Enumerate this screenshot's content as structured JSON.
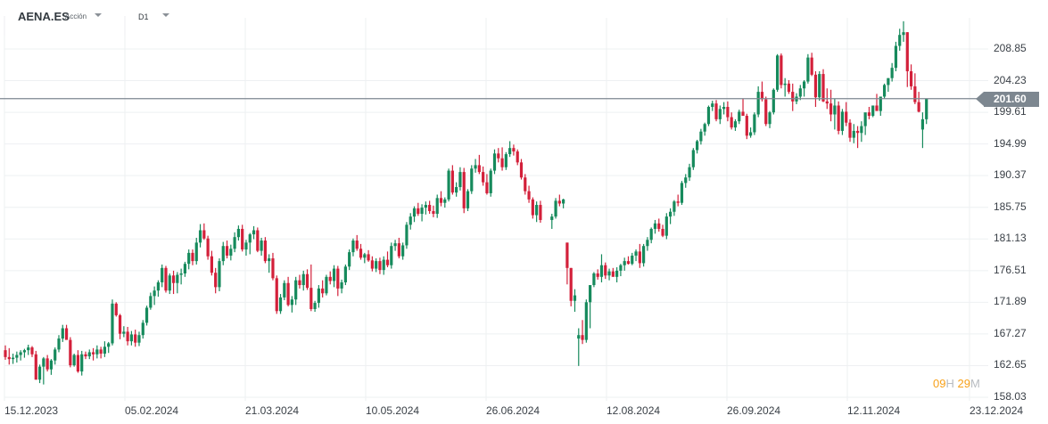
{
  "header": {
    "symbol": "AENA.ES",
    "asset_type": "Acción",
    "timeframe": "D1"
  },
  "price_axis": {
    "ticks": [
      "208.85",
      "204.23",
      "199.61",
      "194.99",
      "190.37",
      "185.75",
      "181.13",
      "176.51",
      "171.89",
      "167.27",
      "162.65",
      "158.03"
    ],
    "current_price": "201.60"
  },
  "date_axis": {
    "ticks": [
      "15.12.2023",
      "05.02.2024",
      "21.03.2024",
      "10.05.2024",
      "26.06.2024",
      "12.08.2024",
      "26.09.2024",
      "12.11.2024",
      "23.12.2024"
    ]
  },
  "countdown": {
    "hours": "09",
    "h_unit": "H",
    "minutes": "29",
    "m_unit": "M"
  },
  "colors": {
    "up": "#168a5c",
    "down": "#d3203a",
    "price_line": "#7d8790",
    "grid": "#eef0f2",
    "countdown": "#f7a11a"
  },
  "chart_data": {
    "type": "candlestick",
    "title": "AENA.ES Acción D1",
    "xlabel": "",
    "ylabel": "",
    "ylim": [
      158.03,
      213.5
    ],
    "x_ticks": [
      "15.12.2023",
      "05.02.2024",
      "21.03.2024",
      "10.05.2024",
      "26.06.2024",
      "12.08.2024",
      "26.09.2024",
      "12.11.2024",
      "23.12.2024"
    ],
    "y_ticks": [
      208.85,
      204.23,
      199.61,
      194.99,
      190.37,
      185.75,
      181.13,
      176.51,
      171.89,
      167.27,
      162.65,
      158.03
    ],
    "current_price": 201.6,
    "grid": true,
    "candles_ohlc": [
      [
        164.9,
        165.6,
        163.5,
        163.9
      ],
      [
        163.9,
        165.2,
        162.8,
        163.6
      ],
      [
        163.6,
        164.4,
        162.9,
        163.8
      ],
      [
        163.8,
        164.7,
        163.1,
        164.2
      ],
      [
        164.2,
        164.9,
        163.4,
        164.6
      ],
      [
        164.6,
        165.1,
        163.8,
        164.9
      ],
      [
        164.9,
        165.7,
        164.2,
        165.3
      ],
      [
        165.3,
        165.5,
        163.9,
        164.3
      ],
      [
        164.3,
        164.8,
        160.6,
        160.6
      ],
      [
        160.6,
        162.8,
        160.1,
        162.5
      ],
      [
        162.5,
        163.9,
        159.9,
        163.7
      ],
      [
        163.7,
        164.2,
        161.8,
        162.1
      ],
      [
        162.1,
        163.6,
        161.3,
        163.4
      ],
      [
        163.4,
        165.3,
        162.8,
        165.0
      ],
      [
        165.0,
        167.1,
        164.6,
        166.6
      ],
      [
        166.6,
        168.6,
        166.1,
        168.1
      ],
      [
        168.1,
        168.6,
        166.9,
        166.4
      ],
      [
        166.4,
        166.8,
        162.4,
        162.7
      ],
      [
        162.7,
        164.4,
        162.5,
        164.2
      ],
      [
        164.2,
        164.9,
        161.6,
        161.8
      ],
      [
        161.8,
        164.8,
        161.2,
        164.3
      ],
      [
        164.3,
        164.7,
        163.6,
        164.0
      ],
      [
        164.0,
        165.0,
        163.6,
        164.6
      ],
      [
        164.6,
        165.2,
        163.4,
        164.3
      ],
      [
        164.3,
        165.6,
        163.7,
        165.0
      ],
      [
        165.0,
        165.4,
        163.7,
        164.4
      ],
      [
        164.4,
        166.2,
        163.9,
        165.4
      ],
      [
        165.4,
        166.1,
        164.5,
        165.9
      ],
      [
        165.9,
        172.3,
        165.6,
        171.7
      ],
      [
        171.7,
        171.9,
        169.8,
        170.0
      ],
      [
        170.0,
        170.2,
        166.5,
        167.3
      ],
      [
        167.3,
        168.4,
        166.8,
        167.6
      ],
      [
        167.6,
        168.3,
        165.6,
        166.2
      ],
      [
        166.2,
        167.7,
        165.6,
        167.2
      ],
      [
        167.2,
        167.9,
        165.4,
        166.0
      ],
      [
        166.0,
        167.6,
        165.5,
        167.1
      ],
      [
        167.1,
        169.3,
        166.6,
        168.9
      ],
      [
        168.9,
        171.4,
        168.5,
        171.1
      ],
      [
        171.1,
        173.3,
        170.8,
        172.8
      ],
      [
        172.8,
        174.2,
        171.5,
        173.6
      ],
      [
        173.6,
        175.1,
        172.7,
        174.8
      ],
      [
        174.8,
        177.4,
        174.1,
        176.9
      ],
      [
        176.9,
        177.2,
        173.3,
        173.6
      ],
      [
        173.6,
        176.1,
        173.1,
        175.8
      ],
      [
        175.8,
        176.5,
        173.1,
        174.7
      ],
      [
        174.7,
        176.3,
        173.2,
        175.9
      ],
      [
        175.9,
        176.8,
        174.5,
        176.1
      ],
      [
        176.1,
        177.8,
        175.6,
        177.5
      ],
      [
        177.5,
        179.6,
        176.7,
        179.1
      ],
      [
        179.1,
        179.6,
        177.3,
        177.9
      ],
      [
        177.9,
        181.3,
        177.4,
        180.6
      ],
      [
        180.6,
        183.3,
        179.9,
        182.4
      ],
      [
        182.4,
        183.4,
        181.0,
        181.2
      ],
      [
        181.2,
        181.6,
        178.1,
        178.6
      ],
      [
        178.6,
        179.4,
        175.8,
        176.2
      ],
      [
        176.2,
        176.9,
        173.2,
        174.1
      ],
      [
        174.1,
        178.3,
        173.5,
        177.9
      ],
      [
        177.9,
        180.7,
        177.3,
        180.1
      ],
      [
        180.1,
        180.9,
        178.3,
        178.7
      ],
      [
        178.7,
        180.3,
        178.0,
        179.7
      ],
      [
        179.7,
        182.1,
        179.2,
        181.4
      ],
      [
        181.4,
        183.1,
        180.9,
        182.6
      ],
      [
        182.6,
        183.2,
        179.3,
        179.6
      ],
      [
        179.6,
        181.0,
        178.7,
        180.6
      ],
      [
        180.6,
        182.0,
        178.9,
        181.8
      ],
      [
        181.8,
        183.0,
        181.1,
        182.4
      ],
      [
        182.4,
        182.8,
        179.2,
        179.4
      ],
      [
        179.4,
        181.3,
        178.7,
        180.9
      ],
      [
        180.9,
        181.4,
        177.6,
        177.9
      ],
      [
        177.9,
        178.9,
        176.2,
        178.3
      ],
      [
        178.3,
        179.1,
        175.1,
        175.4
      ],
      [
        175.4,
        175.8,
        170.2,
        170.6
      ],
      [
        170.6,
        173.1,
        170.2,
        172.6
      ],
      [
        172.6,
        175.1,
        172.2,
        174.7
      ],
      [
        174.7,
        175.6,
        171.3,
        171.5
      ],
      [
        171.5,
        172.8,
        170.4,
        172.3
      ],
      [
        172.3,
        175.6,
        171.5,
        175.1
      ],
      [
        175.1,
        175.9,
        173.9,
        174.4
      ],
      [
        174.4,
        176.5,
        173.6,
        176.0
      ],
      [
        176.0,
        176.7,
        173.7,
        174.0
      ],
      [
        174.0,
        177.4,
        170.6,
        170.9
      ],
      [
        170.9,
        172.1,
        170.5,
        171.8
      ],
      [
        171.8,
        174.4,
        171.1,
        173.9
      ],
      [
        173.9,
        175.1,
        172.6,
        173.2
      ],
      [
        173.2,
        175.9,
        172.9,
        175.6
      ],
      [
        175.6,
        176.4,
        174.5,
        175.0
      ],
      [
        175.0,
        177.3,
        174.1,
        176.8
      ],
      [
        176.8,
        177.2,
        172.8,
        173.9
      ],
      [
        173.9,
        175.2,
        173.2,
        174.8
      ],
      [
        174.8,
        177.4,
        174.4,
        177.1
      ],
      [
        177.1,
        179.6,
        176.6,
        179.2
      ],
      [
        179.2,
        181.2,
        178.6,
        180.9
      ],
      [
        180.9,
        181.7,
        179.4,
        179.7
      ],
      [
        179.7,
        180.4,
        178.1,
        178.4
      ],
      [
        178.4,
        179.1,
        177.6,
        178.9
      ],
      [
        178.9,
        179.5,
        177.8,
        178.0
      ],
      [
        178.0,
        178.6,
        176.4,
        176.8
      ],
      [
        176.8,
        178.3,
        176.3,
        177.9
      ],
      [
        177.9,
        178.4,
        176.0,
        176.6
      ],
      [
        176.6,
        178.6,
        175.9,
        178.1
      ],
      [
        178.1,
        179.3,
        177.0,
        177.3
      ],
      [
        177.3,
        180.6,
        176.8,
        180.1
      ],
      [
        180.1,
        181.0,
        179.4,
        180.5
      ],
      [
        180.5,
        181.3,
        178.3,
        178.6
      ],
      [
        178.6,
        180.6,
        178.1,
        180.2
      ],
      [
        180.2,
        183.6,
        179.7,
        183.2
      ],
      [
        183.2,
        184.9,
        182.5,
        184.4
      ],
      [
        184.4,
        185.9,
        183.6,
        185.6
      ],
      [
        185.6,
        186.4,
        184.5,
        184.8
      ],
      [
        184.8,
        186.2,
        183.7,
        185.7
      ],
      [
        185.7,
        186.6,
        184.7,
        186.1
      ],
      [
        186.1,
        186.7,
        184.8,
        185.2
      ],
      [
        185.2,
        186.0,
        184.3,
        184.8
      ],
      [
        184.8,
        187.6,
        184.2,
        187.1
      ],
      [
        187.1,
        188.1,
        185.9,
        186.4
      ],
      [
        186.4,
        187.2,
        185.7,
        186.9
      ],
      [
        186.9,
        191.4,
        186.6,
        191.1
      ],
      [
        191.1,
        191.9,
        187.6,
        187.9
      ],
      [
        187.9,
        189.4,
        187.3,
        188.7
      ],
      [
        188.7,
        191.6,
        188.2,
        190.9
      ],
      [
        190.9,
        191.5,
        184.9,
        185.6
      ],
      [
        185.6,
        188.4,
        185.2,
        188.1
      ],
      [
        188.1,
        191.9,
        187.7,
        191.4
      ],
      [
        191.4,
        192.8,
        190.8,
        191.9
      ],
      [
        191.9,
        193.4,
        190.6,
        190.9
      ],
      [
        190.9,
        191.7,
        188.9,
        189.4
      ],
      [
        189.4,
        190.6,
        187.6,
        187.8
      ],
      [
        187.8,
        191.4,
        187.3,
        191.1
      ],
      [
        191.1,
        194.2,
        190.6,
        193.6
      ],
      [
        193.6,
        194.4,
        192.3,
        192.9
      ],
      [
        192.9,
        194.5,
        191.1,
        191.6
      ],
      [
        191.6,
        193.8,
        191.2,
        193.5
      ],
      [
        193.5,
        195.4,
        193.1,
        194.4
      ],
      [
        194.4,
        194.9,
        193.3,
        193.9
      ],
      [
        193.9,
        194.2,
        191.9,
        192.3
      ],
      [
        192.3,
        192.8,
        189.8,
        190.1
      ],
      [
        190.1,
        190.6,
        187.6,
        188.1
      ],
      [
        188.1,
        188.9,
        186.4,
        186.9
      ],
      [
        186.9,
        187.2,
        184.1,
        184.6
      ],
      [
        184.6,
        186.6,
        183.6,
        186.1
      ],
      [
        186.1,
        186.7,
        183.5,
        183.9
      ],
      [
        183.9,
        184.8,
        182.6,
        184.4
      ],
      [
        184.4,
        187.1,
        184.1,
        186.7
      ],
      [
        186.7,
        187.6,
        185.9,
        186.3
      ],
      [
        186.3,
        187.0,
        185.6,
        186.9
      ],
      [
        180.6,
        180.6,
        174.5,
        176.9
      ],
      [
        176.9,
        176.9,
        171.3,
        172.1
      ],
      [
        172.1,
        173.8,
        170.5,
        172.9
      ],
      [
        166.6,
        168.1,
        162.6,
        167.1
      ],
      [
        167.1,
        169.3,
        165.8,
        166.4
      ],
      [
        166.4,
        172.3,
        166.0,
        171.9
      ],
      [
        171.9,
        173.6,
        168.1,
        174.4
      ],
      [
        174.4,
        176.3,
        174.1,
        176.1
      ],
      [
        176.1,
        176.7,
        175.2,
        175.6
      ],
      [
        175.6,
        178.9,
        174.8,
        177.3
      ],
      [
        177.3,
        177.7,
        175.3,
        175.8
      ],
      [
        175.8,
        176.8,
        175.1,
        176.4
      ],
      [
        176.4,
        176.9,
        175.8,
        175.6
      ],
      [
        175.6,
        177.0,
        174.8,
        176.5
      ],
      [
        176.5,
        177.5,
        175.7,
        177.3
      ],
      [
        177.3,
        178.4,
        176.5,
        177.9
      ],
      [
        177.9,
        178.6,
        177.4,
        177.5
      ],
      [
        177.5,
        179.1,
        177.3,
        178.7
      ],
      [
        178.7,
        179.6,
        177.9,
        179.3
      ],
      [
        179.3,
        180.4,
        176.9,
        177.6
      ],
      [
        177.6,
        180.4,
        177.1,
        180.1
      ],
      [
        180.1,
        181.4,
        179.4,
        181.0
      ],
      [
        181.0,
        182.8,
        180.5,
        182.6
      ],
      [
        182.6,
        183.9,
        181.9,
        183.4
      ],
      [
        183.4,
        184.1,
        182.2,
        182.6
      ],
      [
        182.6,
        183.2,
        181.4,
        181.6
      ],
      [
        181.6,
        184.9,
        181.1,
        184.4
      ],
      [
        184.4,
        185.6,
        183.3,
        185.1
      ],
      [
        185.1,
        186.8,
        184.5,
        186.6
      ],
      [
        186.6,
        187.6,
        185.9,
        186.4
      ],
      [
        186.4,
        189.6,
        186.1,
        189.3
      ],
      [
        189.3,
        190.6,
        188.6,
        190.1
      ],
      [
        190.1,
        192.1,
        189.6,
        191.6
      ],
      [
        191.6,
        194.4,
        191.2,
        194.1
      ],
      [
        194.1,
        195.6,
        193.6,
        195.4
      ],
      [
        195.4,
        197.2,
        194.9,
        196.8
      ],
      [
        196.8,
        198.1,
        196.2,
        197.9
      ],
      [
        197.9,
        200.6,
        197.6,
        200.4
      ],
      [
        200.4,
        201.3,
        199.8,
        200.9
      ],
      [
        200.9,
        201.4,
        198.3,
        198.6
      ],
      [
        198.6,
        200.6,
        197.9,
        200.1
      ],
      [
        200.1,
        201.1,
        199.3,
        200.4
      ],
      [
        200.4,
        201.2,
        198.3,
        198.9
      ],
      [
        198.9,
        199.6,
        197.1,
        197.4
      ],
      [
        197.4,
        198.6,
        196.9,
        198.3
      ],
      [
        198.3,
        200.0,
        197.9,
        199.7
      ],
      [
        199.7,
        201.6,
        199.4,
        199.1
      ],
      [
        199.1,
        199.4,
        195.7,
        196.2
      ],
      [
        196.2,
        197.4,
        195.9,
        196.7
      ],
      [
        196.7,
        199.6,
        196.3,
        199.3
      ],
      [
        199.3,
        203.4,
        198.9,
        202.6
      ],
      [
        202.6,
        204.1,
        201.2,
        201.5
      ],
      [
        201.5,
        201.9,
        197.6,
        197.9
      ],
      [
        197.9,
        199.8,
        197.3,
        199.6
      ],
      [
        199.6,
        203.1,
        199.3,
        202.9
      ],
      [
        202.9,
        208.1,
        202.6,
        207.9
      ],
      [
        207.9,
        208.2,
        203.1,
        203.6
      ],
      [
        203.6,
        204.6,
        201.9,
        203.8
      ],
      [
        203.8,
        204.3,
        202.3,
        202.6
      ],
      [
        202.6,
        203.8,
        199.8,
        201.2
      ],
      [
        201.2,
        202.4,
        200.8,
        201.9
      ],
      [
        201.9,
        203.6,
        201.4,
        203.1
      ],
      [
        203.1,
        204.3,
        201.9,
        204.1
      ],
      [
        204.1,
        208.1,
        203.8,
        207.6
      ],
      [
        207.6,
        208.3,
        204.9,
        205.1
      ],
      [
        205.1,
        205.6,
        200.4,
        201.8
      ],
      [
        201.8,
        205.6,
        201.3,
        205.2
      ],
      [
        205.2,
        205.9,
        201.1,
        201.2
      ],
      [
        201.2,
        203.1,
        200.1,
        200.9
      ],
      [
        200.9,
        202.9,
        198.3,
        199.3
      ],
      [
        199.3,
        201.6,
        197.1,
        200.6
      ],
      [
        200.6,
        201.2,
        196.4,
        196.9
      ],
      [
        196.9,
        200.1,
        196.3,
        199.7
      ],
      [
        199.7,
        201.1,
        197.6,
        198.1
      ],
      [
        198.1,
        198.6,
        195.3,
        195.9
      ],
      [
        195.9,
        197.9,
        195.1,
        196.9
      ],
      [
        196.9,
        197.6,
        194.4,
        196.6
      ],
      [
        196.6,
        198.3,
        195.3,
        197.6
      ],
      [
        197.6,
        198.3,
        196.3,
        199.6
      ],
      [
        199.6,
        200.4,
        198.6,
        199.1
      ],
      [
        199.1,
        200.6,
        198.9,
        200.6
      ],
      [
        200.6,
        202.3,
        200.2,
        199.8
      ],
      [
        199.8,
        201.6,
        199.1,
        201.9
      ],
      [
        201.9,
        203.8,
        201.6,
        203.6
      ],
      [
        203.6,
        204.6,
        202.6,
        204.6
      ],
      [
        204.6,
        206.8,
        204.1,
        206.1
      ],
      [
        206.1,
        209.9,
        205.6,
        209.3
      ],
      [
        209.3,
        211.8,
        208.6,
        210.9
      ],
      [
        210.9,
        212.9,
        209.9,
        211.3
      ],
      [
        211.3,
        211.3,
        203.3,
        205.6
      ],
      [
        205.6,
        206.6,
        202.9,
        203.4
      ],
      [
        203.4,
        205.3,
        200.8,
        201.1
      ],
      [
        201.1,
        202.6,
        199.6,
        199.7
      ],
      [
        197.1,
        199.6,
        194.4,
        198.6
      ],
      [
        198.6,
        201.6,
        197.9,
        201.6
      ]
    ]
  }
}
